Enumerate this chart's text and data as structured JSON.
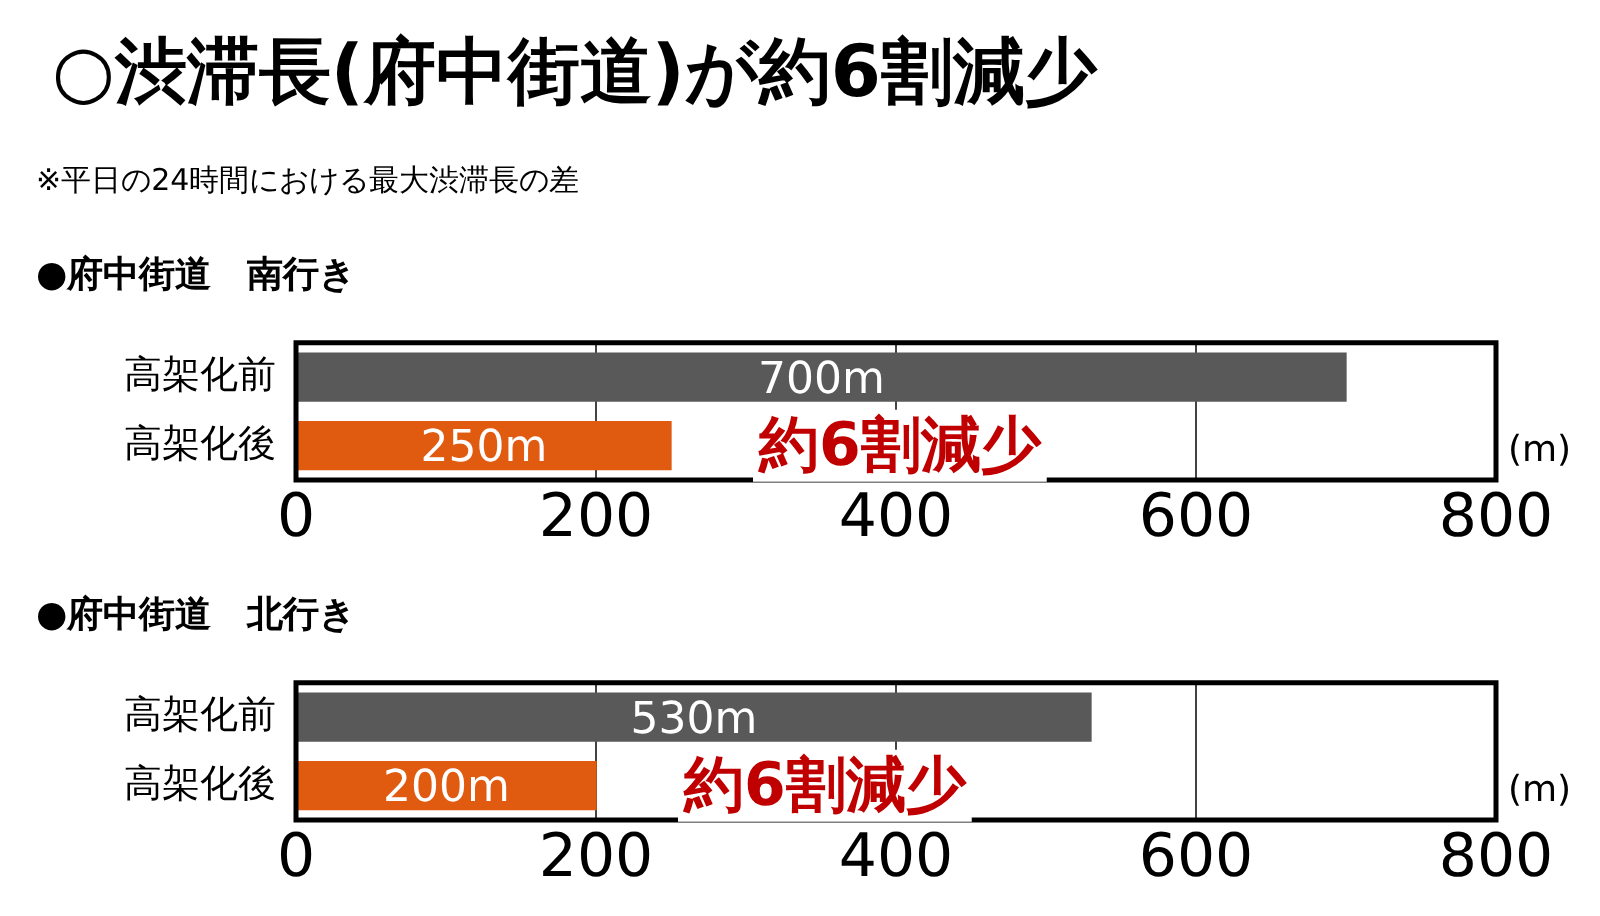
{
  "chart_data": [
    {
      "type": "bar",
      "orientation": "horizontal",
      "title": "○渋滞長(府中街道)が約6割減少",
      "subtitle": "※平日の24時間における最大渋滞長の差",
      "categories": [
        "高架化前",
        "高架化後"
      ],
      "values": [
        700,
        250
      ],
      "colors": [
        "#595959",
        "#e05a10"
      ],
      "value_labels": [
        "700m",
        "250m"
      ],
      "xlim": [
        0,
        800
      ],
      "xticks": [
        0,
        200,
        400,
        600,
        800
      ],
      "xlabel": "(m)",
      "grid": "x",
      "legend": false,
      "annotations": [
        "●府中街道　南行き",
        "約6割減少"
      ]
    },
    {
      "type": "bar",
      "orientation": "horizontal",
      "title": "●府中街道　北行き",
      "categories": [
        "高架化前",
        "高架化後"
      ],
      "values": [
        530,
        200
      ],
      "colors": [
        "#595959",
        "#e05a10"
      ],
      "value_labels": [
        "530m",
        "200m"
      ],
      "xlim": [
        0,
        800
      ],
      "xticks": [
        0,
        200,
        400,
        600,
        800
      ],
      "xlabel": "(m)",
      "grid": "x",
      "legend": false,
      "annotations": [
        "約6割減少"
      ]
    }
  ]
}
